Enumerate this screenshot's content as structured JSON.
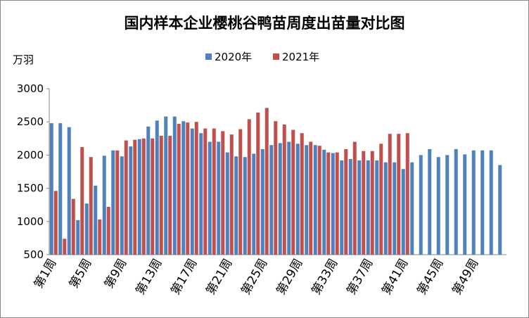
{
  "chart_data": {
    "type": "bar",
    "title": "国内样本企业樱桃谷鸭苗周度出苗量对比图",
    "y_unit": "万羽",
    "categories": [
      "第1周",
      null,
      null,
      null,
      "第5周",
      null,
      null,
      null,
      "第9周",
      null,
      null,
      null,
      "第13周",
      null,
      null,
      null,
      "第17周",
      null,
      null,
      null,
      "第21周",
      null,
      null,
      null,
      "第25周",
      null,
      null,
      null,
      "第29周",
      null,
      null,
      null,
      "第33周",
      null,
      null,
      null,
      "第37周",
      null,
      null,
      null,
      "第41周",
      null,
      null,
      null,
      "第45周",
      null,
      null,
      null,
      "第49周",
      null,
      null,
      null
    ],
    "series": [
      {
        "name": "2020年",
        "color": "#4f81bd",
        "values": [
          2480,
          2480,
          2420,
          1020,
          1270,
          1540,
          1990,
          2070,
          1980,
          2130,
          2240,
          2430,
          2520,
          2580,
          2580,
          2510,
          2400,
          2330,
          2200,
          2200,
          2040,
          1980,
          1970,
          2020,
          2090,
          2150,
          2180,
          2200,
          2170,
          2150,
          2150,
          2080,
          2030,
          1920,
          1940,
          1920,
          1920,
          1920,
          1890,
          1890,
          1790,
          1890,
          2000,
          2090,
          1970,
          2000,
          2090,
          2010,
          2070,
          2070,
          2070,
          1850
        ]
      },
      {
        "name": "2021年",
        "color": "#c0504d",
        "values": [
          1460,
          740,
          1340,
          2120,
          1970,
          1030,
          1220,
          2070,
          2220,
          2230,
          2250,
          2250,
          2290,
          2290,
          2470,
          2490,
          2500,
          2400,
          2400,
          2360,
          2310,
          2390,
          2540,
          2640,
          2710,
          2510,
          2460,
          2380,
          2330,
          2200,
          2140,
          2040,
          2040,
          2090,
          2200,
          2060,
          2060,
          2170,
          2320,
          2320,
          2330,
          null,
          null,
          null,
          null,
          null,
          null,
          null,
          null,
          null,
          null,
          null
        ]
      }
    ],
    "ylim": [
      500,
      3000
    ],
    "yticks": [
      500,
      1000,
      1500,
      2000,
      2500,
      3000
    ],
    "grid": false
  }
}
